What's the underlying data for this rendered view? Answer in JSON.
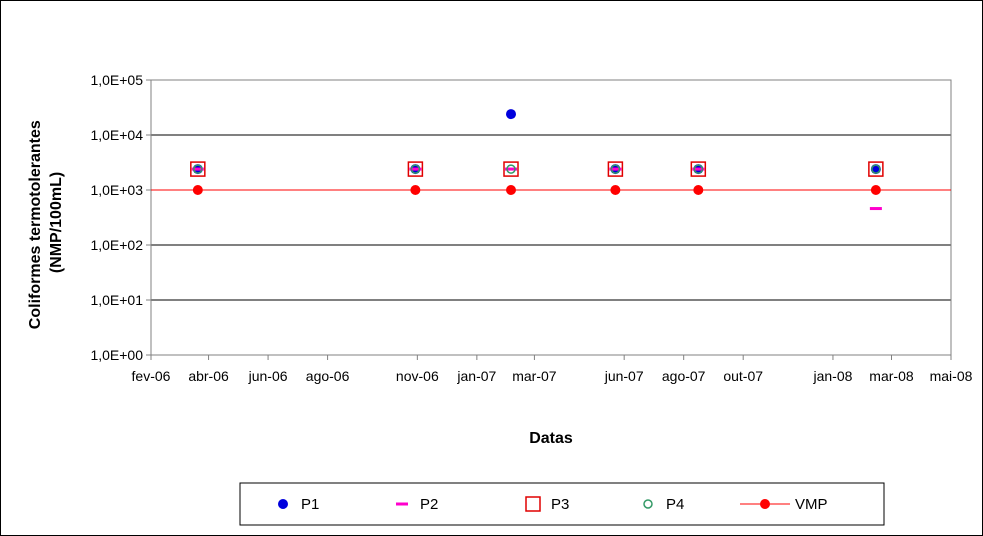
{
  "chart_data": {
    "type": "scatter",
    "title": "",
    "xlabel": "Datas",
    "ylabel": "Coliformes termotolerantes (NMP/100mL)",
    "ylabel_lines": [
      "Coliformes termotolerantes",
      "(NMP/100mL)"
    ],
    "yscale": "log",
    "ylim": [
      1,
      100000
    ],
    "y_ticks": [
      1,
      10,
      100,
      1000,
      10000,
      100000
    ],
    "y_tick_labels": [
      "1,0E+00",
      "1,0E+01",
      "1,0E+02",
      "1,0E+03",
      "1,0E+04",
      "1,0E+05"
    ],
    "xlim": [
      "2006-02-01",
      "2008-05-01"
    ],
    "x_ticks": [
      "2006-02-01",
      "2006-04-01",
      "2006-06-01",
      "2006-08-01",
      "2006-11-01",
      "2007-01-01",
      "2007-03-01",
      "2007-06-01",
      "2007-08-01",
      "2007-10-01",
      "2008-01-01",
      "2008-03-01",
      "2008-05-01"
    ],
    "x_tick_labels": [
      "fev-06",
      "abr-06",
      "jun-06",
      "ago-06",
      "nov-06",
      "jan-07",
      "mar-07",
      "jun-07",
      "ago-07",
      "out-07",
      "jan-08",
      "mar-08",
      "mai-08"
    ],
    "grid": "horizontal",
    "legend_position": "bottom",
    "series": [
      {
        "name": "P1",
        "marker": "filled-circle",
        "color": "#0000dd",
        "x": [
          "2006-03-21",
          "2006-10-30",
          "2007-02-05",
          "2007-05-23",
          "2007-08-16",
          "2008-02-14"
        ],
        "y": [
          2400,
          2400,
          24000,
          2400,
          2400,
          2400
        ]
      },
      {
        "name": "P2",
        "marker": "dash",
        "color": "#ff00cc",
        "x": [
          "2006-03-21",
          "2006-10-30",
          "2007-02-05",
          "2007-05-23",
          "2007-08-16",
          "2008-02-14"
        ],
        "y": [
          2400,
          2400,
          2400,
          2400,
          2400,
          460
        ]
      },
      {
        "name": "P3",
        "marker": "open-square",
        "color": "#e00000",
        "x": [
          "2006-03-21",
          "2006-10-30",
          "2007-02-05",
          "2007-05-23",
          "2007-08-16",
          "2008-02-14"
        ],
        "y": [
          2400,
          2400,
          2400,
          2400,
          2400,
          2400
        ]
      },
      {
        "name": "P4",
        "marker": "open-circle",
        "color": "#339966",
        "x": [
          "2006-03-21",
          "2006-10-30",
          "2007-02-05",
          "2007-05-23",
          "2007-08-16",
          "2008-02-14"
        ],
        "y": [
          2400,
          2400,
          2400,
          2400,
          2400,
          2400
        ]
      },
      {
        "name": "VMP",
        "marker": "filled-circle-line",
        "color": "#ff0000",
        "x": [
          "2006-03-21",
          "2006-10-30",
          "2007-02-05",
          "2007-05-23",
          "2007-08-16",
          "2008-02-14"
        ],
        "y": [
          1000,
          1000,
          1000,
          1000,
          1000,
          1000
        ]
      }
    ]
  }
}
